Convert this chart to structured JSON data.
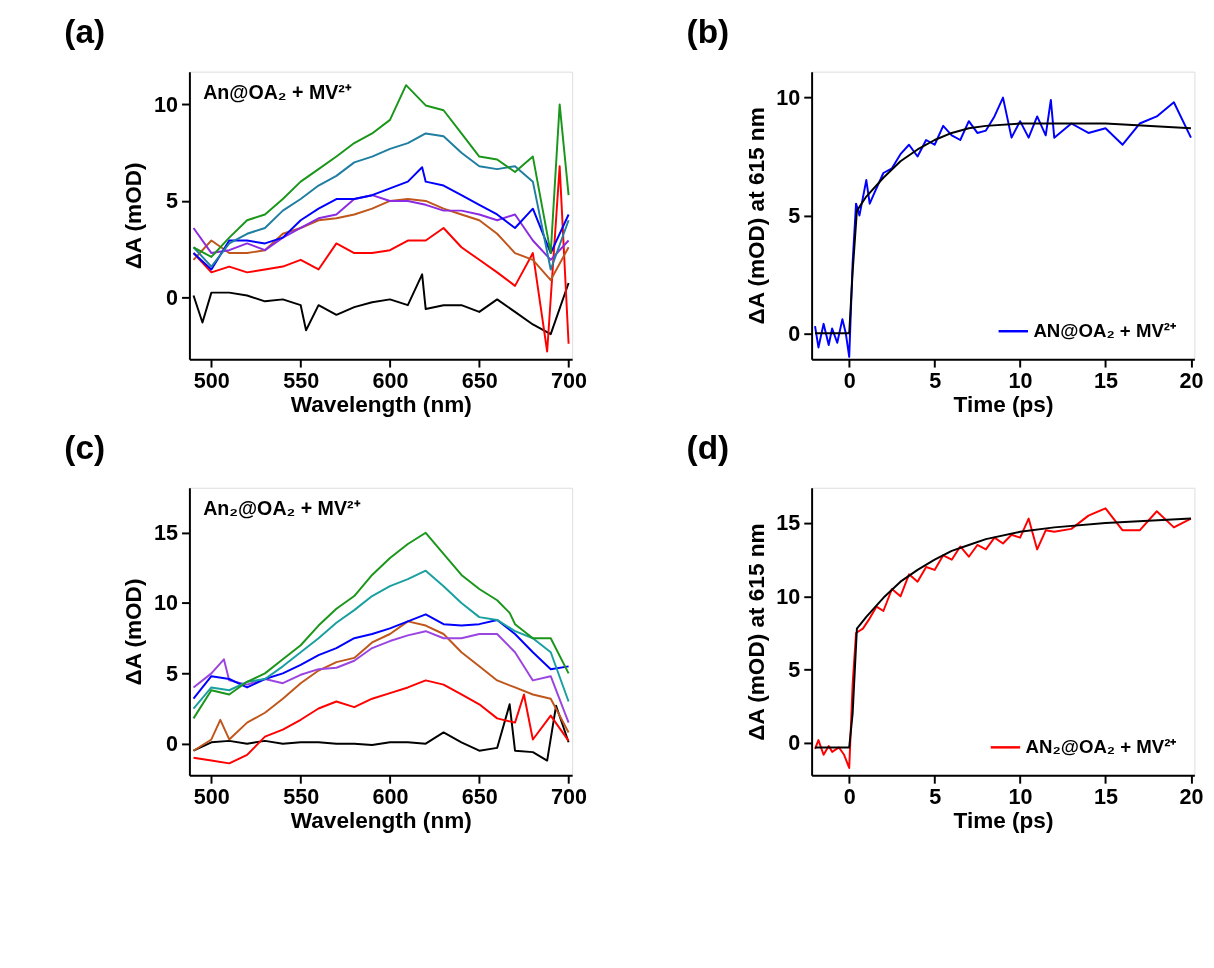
{
  "chart_data": [
    {
      "type": "line",
      "title": "(a)",
      "annotations": [
        "An@OA₂ + MV²⁺"
      ],
      "xlabel": "Wavelength (nm)",
      "ylabel": "ΔA (mOD)",
      "xlim": [
        487.7,
        702
      ],
      "ylim": [
        -3.2,
        11.7
      ],
      "xticks": [
        500,
        550,
        600,
        650,
        700
      ],
      "yticks": [
        0,
        5,
        10
      ],
      "line_style": "solid",
      "series": [
        {
          "color": "#000000",
          "x": [
            490,
            495,
            500,
            510,
            520,
            530,
            540,
            550,
            553,
            560,
            570,
            580,
            590,
            600,
            610,
            618,
            620,
            630,
            640,
            650,
            660,
            670,
            680,
            690,
            700
          ],
          "values": [
            0.1,
            -1.3,
            0.25,
            0.25,
            0.1,
            -0.2,
            -0.1,
            -0.4,
            -1.7,
            -0.4,
            -0.9,
            -0.5,
            -0.25,
            -0.1,
            -0.4,
            1.2,
            -0.6,
            -0.4,
            -0.4,
            -0.75,
            -0.1,
            -0.75,
            -1.4,
            -1.9,
            0.75
          ]
        },
        {
          "color": "#ff0000",
          "x": [
            490,
            500,
            510,
            520,
            530,
            540,
            550,
            560,
            570,
            580,
            590,
            600,
            610,
            620,
            630,
            640,
            650,
            660,
            670,
            680,
            688,
            695,
            700
          ],
          "values": [
            2.3,
            1.3,
            1.6,
            1.3,
            1.45,
            1.6,
            1.95,
            1.45,
            2.8,
            2.3,
            2.3,
            2.45,
            2.95,
            2.95,
            3.6,
            2.6,
            1.95,
            1.3,
            0.6,
            2.3,
            -2.8,
            6.8,
            -2.4
          ]
        },
        {
          "color": "#c0561b",
          "x": [
            490,
            500,
            510,
            520,
            530,
            540,
            550,
            560,
            570,
            580,
            590,
            600,
            610,
            620,
            630,
            640,
            650,
            660,
            670,
            680,
            690,
            700
          ],
          "values": [
            1.95,
            2.95,
            2.3,
            2.3,
            2.45,
            3.3,
            3.6,
            4.0,
            4.1,
            4.3,
            4.6,
            5.0,
            5.1,
            5.0,
            4.6,
            4.3,
            4.0,
            3.3,
            2.3,
            1.95,
            0.9,
            2.6
          ]
        },
        {
          "color": "#8b2be2",
          "x": [
            490,
            500,
            510,
            520,
            530,
            540,
            550,
            560,
            570,
            580,
            590,
            600,
            610,
            620,
            630,
            640,
            650,
            660,
            670,
            680,
            690,
            700
          ],
          "values": [
            3.6,
            2.3,
            2.45,
            2.8,
            2.45,
            3.1,
            3.6,
            4.1,
            4.3,
            5.1,
            5.3,
            5.0,
            5.0,
            4.8,
            4.5,
            4.5,
            4.3,
            4.0,
            4.3,
            2.95,
            1.95,
            2.95
          ]
        },
        {
          "color": "#0000ff",
          "x": [
            490,
            500,
            510,
            520,
            530,
            540,
            550,
            560,
            570,
            580,
            590,
            600,
            610,
            618,
            620,
            630,
            640,
            650,
            660,
            670,
            680,
            690,
            700
          ],
          "values": [
            2.3,
            1.45,
            2.95,
            2.95,
            2.8,
            3.1,
            4.0,
            4.6,
            5.1,
            5.1,
            5.3,
            5.65,
            6.0,
            6.75,
            6.0,
            5.8,
            5.3,
            4.8,
            4.3,
            3.6,
            4.6,
            2.3,
            4.3
          ]
        },
        {
          "color": "#1f7ea1",
          "x": [
            490,
            500,
            510,
            520,
            530,
            540,
            550,
            560,
            570,
            580,
            590,
            600,
            610,
            620,
            630,
            640,
            650,
            660,
            670,
            680,
            690,
            700
          ],
          "values": [
            2.6,
            1.6,
            2.8,
            3.3,
            3.6,
            4.5,
            5.1,
            5.8,
            6.3,
            7.0,
            7.3,
            7.7,
            8.0,
            8.5,
            8.35,
            7.5,
            6.8,
            6.65,
            6.8,
            6.0,
            1.45,
            4.0
          ]
        },
        {
          "color": "#1a961a",
          "x": [
            490,
            500,
            510,
            520,
            530,
            540,
            550,
            560,
            570,
            580,
            590,
            600,
            609,
            620,
            630,
            640,
            650,
            660,
            670,
            680,
            690,
            695,
            700
          ],
          "values": [
            2.6,
            2.1,
            3.1,
            4.0,
            4.3,
            5.1,
            6.0,
            6.65,
            7.3,
            8.0,
            8.5,
            9.2,
            11.0,
            9.95,
            9.7,
            8.5,
            7.3,
            7.15,
            6.5,
            7.3,
            2.3,
            10.0,
            5.3
          ]
        }
      ]
    },
    {
      "type": "line",
      "title": "(b)",
      "xlabel": "Time (ps)",
      "ylabel": "ΔA (mOD) at 615 nm",
      "xlim": [
        -2.2,
        20.2
      ],
      "ylim": [
        -1.1,
        11.1
      ],
      "xticks": [
        0,
        5,
        10,
        15,
        20
      ],
      "yticks": [
        0,
        5,
        10
      ],
      "legend": "bottom right",
      "line_style": "solid",
      "series": [
        {
          "name": "AN@OA₂ + MV²⁺",
          "color": "#0000ff",
          "x": [
            -2.0,
            -1.8,
            -1.5,
            -1.2,
            -1.0,
            -0.7,
            -0.4,
            -0.2,
            0,
            0.2,
            0.4,
            0.6,
            1.0,
            1.2,
            1.5,
            2.0,
            2.5,
            3.0,
            3.5,
            4.0,
            4.5,
            5.0,
            5.5,
            6.0,
            6.5,
            7.0,
            7.5,
            8.0,
            8.5,
            9.0,
            9.5,
            10.0,
            10.5,
            11.0,
            11.5,
            11.8,
            12.0,
            13,
            14,
            15,
            16,
            17,
            18,
            19,
            20
          ],
          "values": [
            0.3,
            -0.6,
            0.4,
            -0.5,
            0.2,
            -0.4,
            0.6,
            0.0,
            -1.0,
            3.0,
            5.5,
            5.0,
            6.5,
            5.5,
            6.0,
            6.8,
            7.0,
            7.6,
            8.0,
            7.5,
            8.2,
            8.0,
            8.8,
            8.4,
            8.2,
            9.0,
            8.5,
            8.6,
            9.2,
            10.0,
            8.3,
            9.0,
            8.3,
            9.2,
            8.4,
            9.9,
            8.3,
            8.9,
            8.5,
            8.7,
            8.0,
            8.9,
            9.2,
            9.8,
            8.3
          ]
        },
        {
          "color": "#000000",
          "x": [
            -2,
            0,
            0.2,
            0.45,
            1,
            2,
            3,
            4,
            5,
            6,
            7,
            8,
            10,
            12,
            15,
            20
          ],
          "values": [
            0,
            0,
            2.6,
            5.2,
            5.8,
            6.6,
            7.3,
            7.8,
            8.2,
            8.5,
            8.7,
            8.8,
            8.9,
            8.9,
            8.9,
            8.7
          ]
        }
      ]
    },
    {
      "type": "line",
      "title": "(c)",
      "annotations": [
        "An₂@OA₂ + MV²⁺"
      ],
      "xlabel": "Wavelength (nm)",
      "ylabel": "ΔA (mOD)",
      "xlim": [
        487.7,
        702
      ],
      "ylim": [
        -2.25,
        18.2
      ],
      "xticks": [
        500,
        550,
        600,
        650,
        700
      ],
      "yticks": [
        0,
        5,
        10,
        15
      ],
      "line_style": "solid",
      "series": [
        {
          "color": "#000000",
          "x": [
            490,
            500,
            510,
            520,
            530,
            540,
            550,
            560,
            570,
            580,
            590,
            600,
            610,
            620,
            630,
            640,
            650,
            660,
            667,
            670,
            680,
            688,
            693,
            700
          ],
          "values": [
            -0.5,
            0.1,
            0.2,
            0,
            0.2,
            0,
            0.1,
            0.1,
            0,
            0,
            -0.1,
            0.1,
            0.1,
            0,
            0.8,
            0.1,
            -0.5,
            -0.3,
            2.8,
            -0.5,
            -0.6,
            -1.2,
            2.7,
            0.1
          ]
        },
        {
          "color": "#ff0000",
          "x": [
            490,
            500,
            510,
            520,
            530,
            540,
            550,
            560,
            570,
            580,
            590,
            600,
            610,
            620,
            630,
            640,
            650,
            660,
            670,
            675,
            680,
            690,
            700
          ],
          "values": [
            -1.0,
            -1.2,
            -1.4,
            -0.8,
            0.5,
            1.0,
            1.7,
            2.5,
            3.0,
            2.6,
            3.2,
            3.6,
            4.0,
            4.5,
            4.2,
            3.5,
            2.8,
            1.8,
            1.5,
            3.5,
            0.3,
            2.0,
            0.2
          ]
        },
        {
          "color": "#c0561b",
          "x": [
            490,
            500,
            505,
            510,
            520,
            530,
            540,
            550,
            560,
            570,
            580,
            590,
            600,
            610,
            620,
            630,
            640,
            650,
            660,
            670,
            680,
            690,
            700
          ],
          "values": [
            -0.5,
            0.3,
            1.7,
            0.3,
            1.5,
            2.2,
            3.2,
            4.3,
            5.2,
            5.8,
            6.1,
            7.2,
            7.8,
            8.7,
            8.4,
            7.8,
            6.5,
            5.5,
            4.5,
            4.0,
            3.5,
            3.2,
            0.8
          ]
        },
        {
          "color": "#9b45e0",
          "x": [
            490,
            500,
            507,
            510,
            520,
            530,
            540,
            550,
            560,
            570,
            580,
            590,
            600,
            610,
            620,
            630,
            640,
            650,
            660,
            670,
            680,
            690,
            700
          ],
          "values": [
            4.0,
            5.0,
            6.0,
            4.5,
            4.2,
            4.6,
            4.3,
            4.9,
            5.3,
            5.4,
            5.9,
            6.8,
            7.3,
            7.7,
            8.0,
            7.5,
            7.5,
            7.8,
            7.8,
            6.5,
            4.5,
            4.8,
            1.5
          ]
        },
        {
          "color": "#0000ff",
          "x": [
            490,
            500,
            510,
            520,
            530,
            540,
            550,
            560,
            570,
            580,
            590,
            600,
            610,
            620,
            630,
            640,
            650,
            660,
            670,
            680,
            690,
            700
          ],
          "values": [
            3.2,
            4.8,
            4.6,
            4.0,
            4.6,
            5.0,
            5.6,
            6.3,
            6.8,
            7.5,
            7.8,
            8.2,
            8.7,
            9.2,
            8.5,
            8.4,
            8.5,
            8.8,
            7.8,
            6.5,
            5.3,
            5.5
          ]
        },
        {
          "color": "#1aa0a0",
          "x": [
            490,
            500,
            510,
            520,
            530,
            540,
            550,
            560,
            570,
            580,
            590,
            600,
            610,
            620,
            630,
            640,
            650,
            660,
            670,
            680,
            690,
            700
          ],
          "values": [
            2.5,
            4.0,
            3.8,
            4.4,
            4.6,
            5.5,
            6.5,
            7.5,
            8.6,
            9.5,
            10.5,
            11.2,
            11.7,
            12.3,
            11.2,
            10.0,
            9.0,
            8.8,
            8.0,
            7.5,
            6.5,
            3.0
          ]
        },
        {
          "color": "#1a961a",
          "x": [
            490,
            500,
            510,
            520,
            530,
            540,
            550,
            560,
            570,
            580,
            590,
            600,
            610,
            620,
            630,
            640,
            650,
            660,
            667,
            670,
            680,
            690,
            700
          ],
          "values": [
            1.8,
            3.8,
            3.5,
            4.4,
            5.0,
            6.0,
            7.0,
            8.4,
            9.6,
            10.5,
            12.0,
            13.2,
            14.2,
            15.0,
            13.5,
            12.0,
            11.0,
            10.2,
            9.3,
            8.5,
            7.5,
            7.5,
            5.0
          ]
        }
      ]
    },
    {
      "type": "line",
      "title": "(d)",
      "xlabel": "Time (ps)",
      "ylabel": "ΔA (mOD) at 615 nm",
      "xlim": [
        -2.2,
        20.2
      ],
      "ylim": [
        -2.2,
        17.4
      ],
      "xticks": [
        0,
        5,
        10,
        15,
        20
      ],
      "yticks": [
        0,
        5,
        10,
        15
      ],
      "legend": "bottom right",
      "line_style": "solid",
      "series": [
        {
          "name": "AN₂@OA₂ + MV²⁺",
          "color": "#ff0000",
          "x": [
            -2.0,
            -1.8,
            -1.5,
            -1.2,
            -1.0,
            -0.6,
            -0.3,
            0,
            0.2,
            0.4,
            0.8,
            1.2,
            1.6,
            2.0,
            2.5,
            3.0,
            3.5,
            4.0,
            4.5,
            5.0,
            5.5,
            6.0,
            6.5,
            7.0,
            7.5,
            8.0,
            8.5,
            9.0,
            9.5,
            10.0,
            10.5,
            11.0,
            11.5,
            12,
            13,
            14,
            15,
            16,
            17,
            18,
            19,
            20
          ],
          "values": [
            -0.4,
            0.2,
            -0.8,
            -0.2,
            -0.6,
            -0.3,
            -0.8,
            -1.7,
            4.0,
            7.5,
            7.8,
            8.5,
            9.3,
            9.0,
            10.5,
            10.0,
            11.5,
            11.0,
            12.0,
            11.8,
            12.8,
            12.5,
            13.4,
            12.7,
            13.5,
            13.2,
            14.0,
            13.6,
            14.2,
            14.0,
            15.3,
            13.2,
            14.5,
            14.4,
            14.6,
            15.5,
            16.0,
            14.5,
            14.5,
            15.8,
            14.7,
            15.3
          ]
        },
        {
          "color": "#000000",
          "x": [
            -2,
            0,
            0.2,
            0.45,
            1,
            2,
            3,
            4,
            5,
            6,
            7,
            8,
            10,
            12,
            15,
            20
          ],
          "values": [
            -0.3,
            -0.3,
            2.0,
            7.8,
            8.6,
            9.9,
            11.0,
            11.8,
            12.5,
            13.1,
            13.5,
            13.9,
            14.4,
            14.7,
            15.0,
            15.3
          ]
        }
      ]
    }
  ]
}
